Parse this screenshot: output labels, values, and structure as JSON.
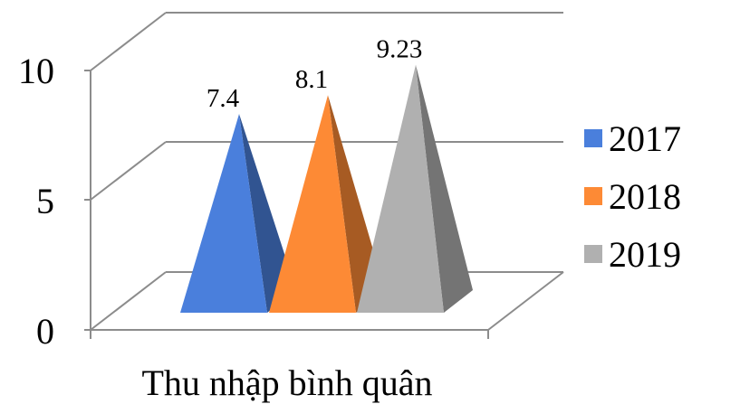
{
  "chart_data": {
    "type": "bar",
    "style": "3d-pyramid",
    "categories": [
      "Thu nhập bình quân"
    ],
    "series": [
      {
        "name": "2017",
        "values": [
          7.4
        ],
        "label": "7.4",
        "color": "#4a7fdc"
      },
      {
        "name": "2018",
        "values": [
          8.1
        ],
        "label": "8.1",
        "color": "#fd8a35"
      },
      {
        "name": "2019",
        "values": [
          9.23
        ],
        "label": "9.23",
        "color": "#b0b0b0"
      }
    ],
    "yticks": [
      "0",
      "5",
      "10"
    ],
    "ylim": [
      0,
      10
    ],
    "legend": "right",
    "grid": true,
    "title": "",
    "xlabel": "",
    "ylabel": ""
  }
}
